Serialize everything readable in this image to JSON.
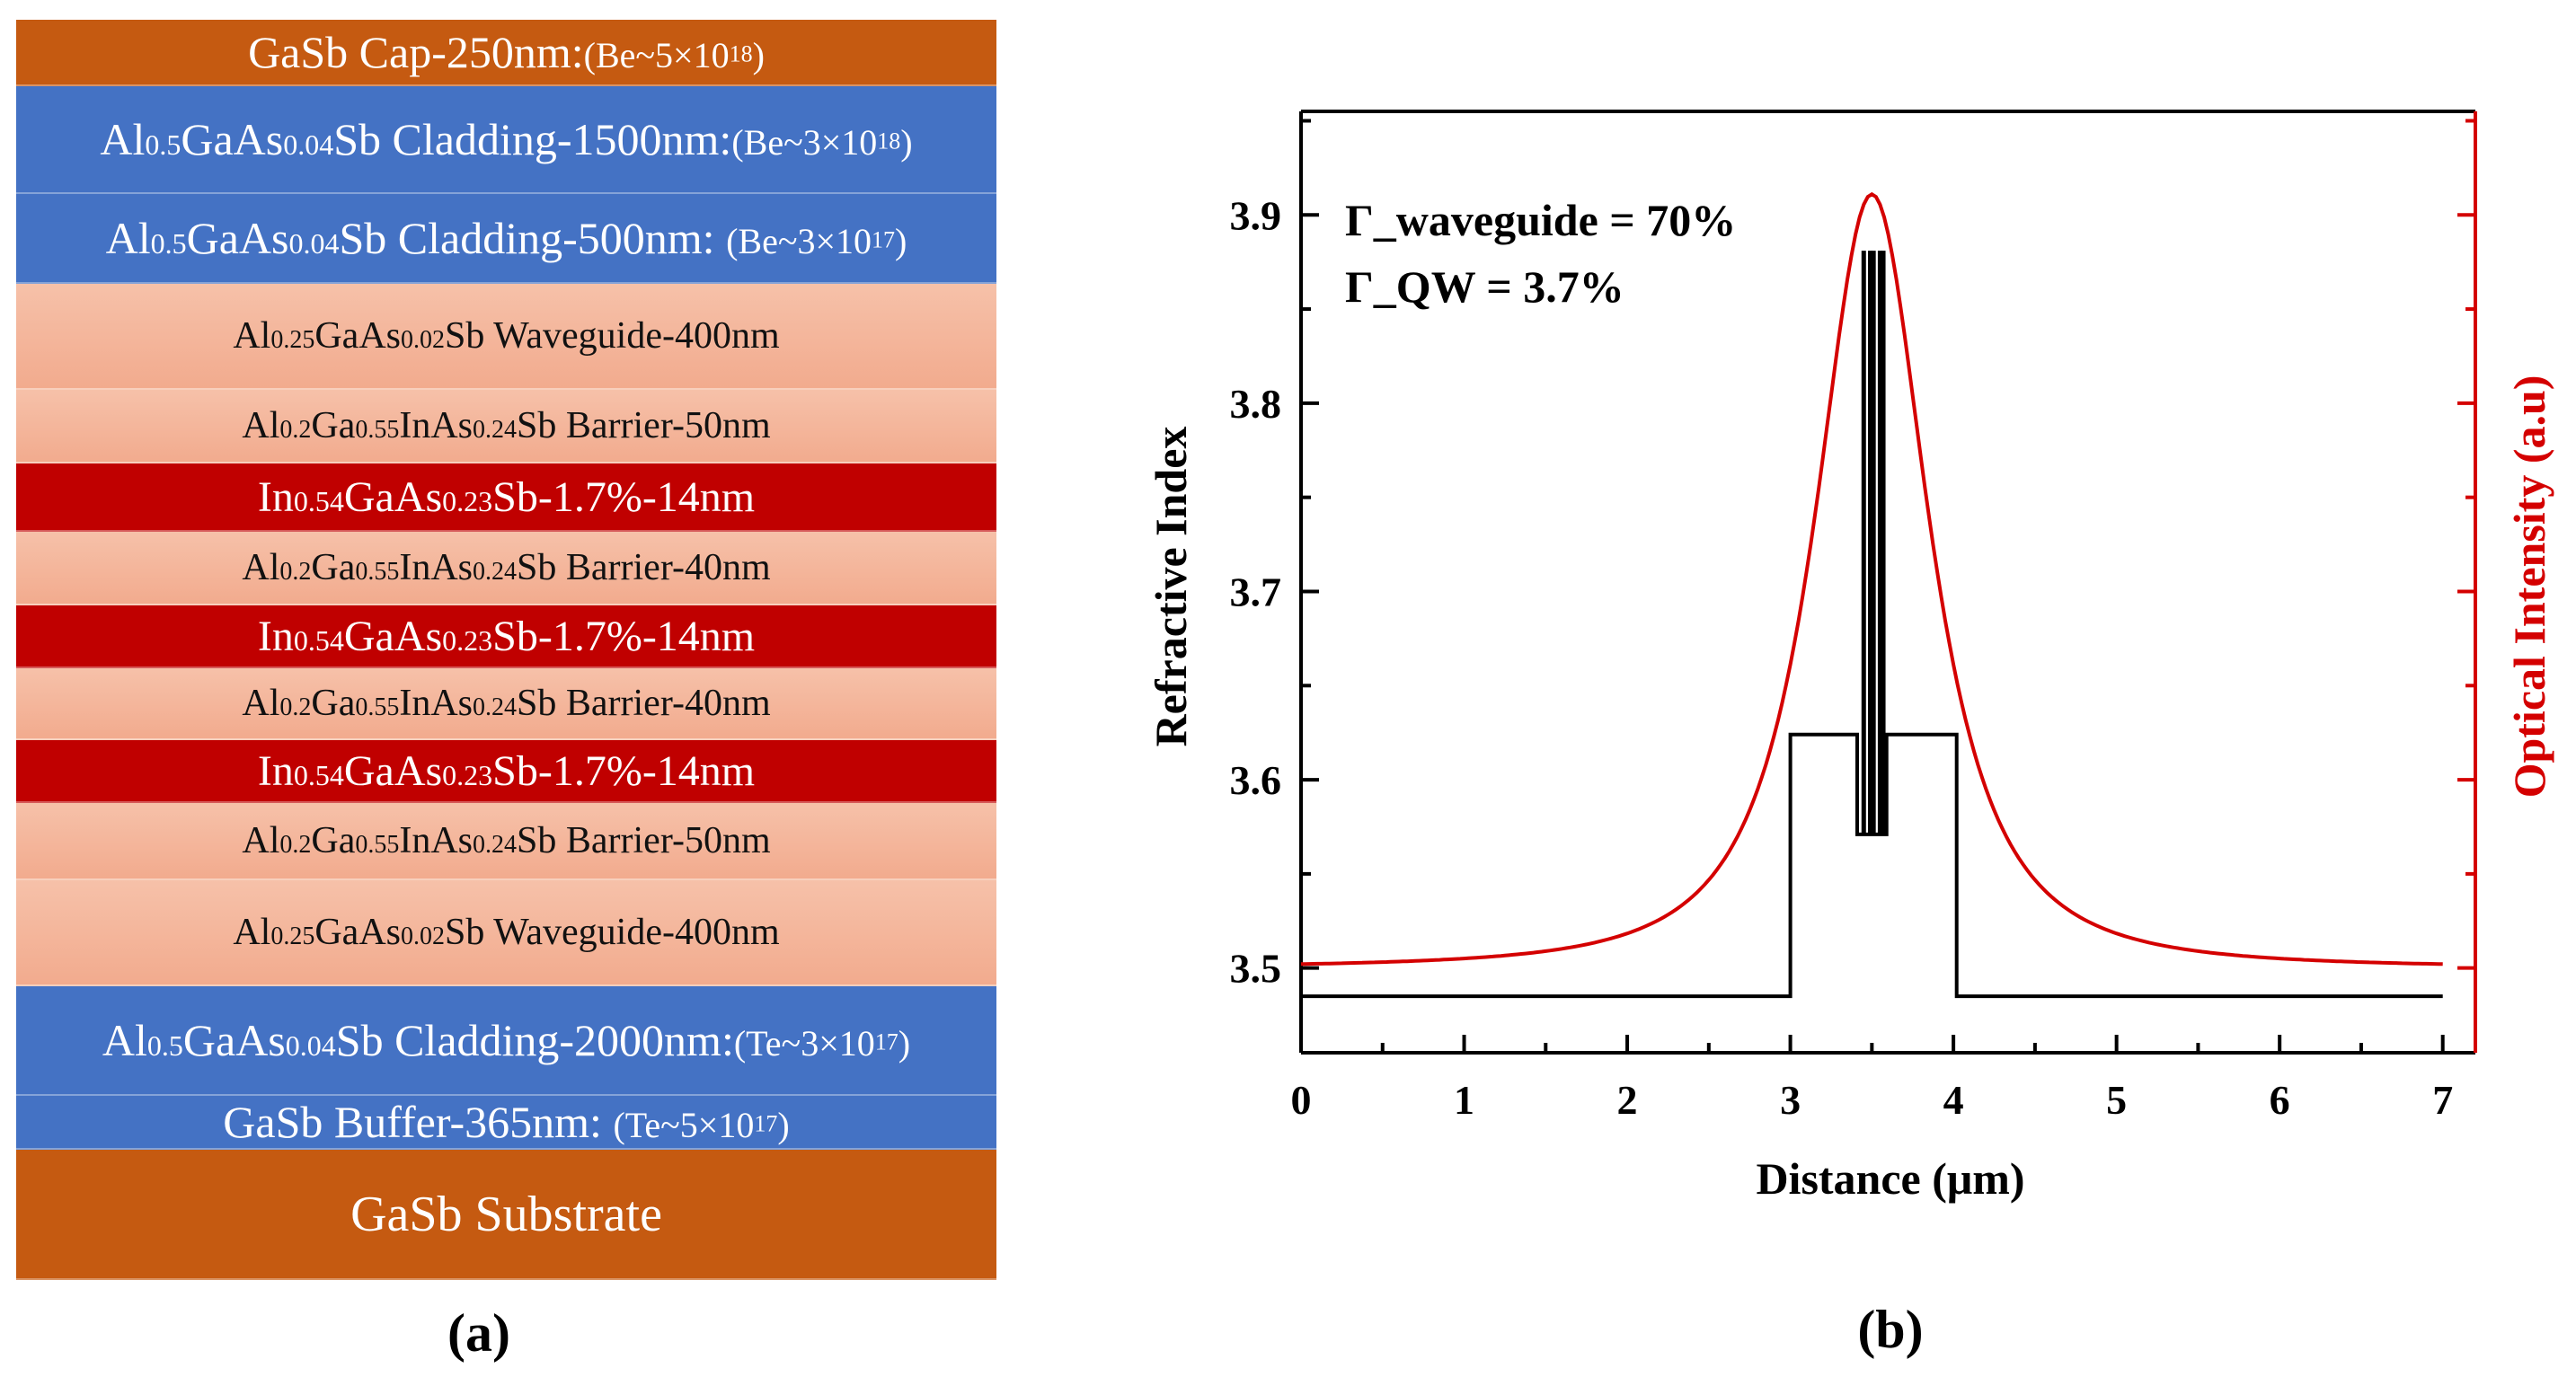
{
  "panel_a": {
    "caption": "(a)",
    "layers": [
      {
        "name": "gasb-cap",
        "parts": [
          {
            "t": "GaSb Cap-250nm:",
            "c": "main"
          },
          {
            "t": "(Be~5×10",
            "c": "note"
          },
          {
            "t": "18",
            "c": "sup"
          },
          {
            "t": ")",
            "c": "note"
          }
        ]
      },
      {
        "name": "cladding-1500",
        "parts": [
          {
            "t": "Al",
            "c": "main"
          },
          {
            "t": "0.5",
            "c": "sub"
          },
          {
            "t": "GaAs",
            "c": "main"
          },
          {
            "t": "0.04",
            "c": "sub"
          },
          {
            "t": "Sb Cladding-1500nm:",
            "c": "main"
          },
          {
            "t": "(Be~3×10",
            "c": "note"
          },
          {
            "t": "18",
            "c": "sup"
          },
          {
            "t": ")",
            "c": "note"
          }
        ]
      },
      {
        "name": "cladding-500",
        "parts": [
          {
            "t": "Al",
            "c": "main"
          },
          {
            "t": "0.5",
            "c": "sub"
          },
          {
            "t": "GaAs",
            "c": "main"
          },
          {
            "t": "0.04",
            "c": "sub"
          },
          {
            "t": "Sb Cladding-500nm: ",
            "c": "main"
          },
          {
            "t": "(Be~3×10",
            "c": "note"
          },
          {
            "t": "17",
            "c": "sup"
          },
          {
            "t": ")",
            "c": "note"
          }
        ]
      },
      {
        "name": "waveguide-top",
        "parts": [
          {
            "t": "Al",
            "c": "main"
          },
          {
            "t": "0.25",
            "c": "sub"
          },
          {
            "t": "GaAs",
            "c": "main"
          },
          {
            "t": "0.02",
            "c": "sub"
          },
          {
            "t": "Sb Waveguide-400nm",
            "c": "main"
          }
        ]
      },
      {
        "name": "barrier-50-top",
        "parts": [
          {
            "t": "Al",
            "c": "main"
          },
          {
            "t": "0.2",
            "c": "sub"
          },
          {
            "t": "Ga",
            "c": "main"
          },
          {
            "t": "0.55",
            "c": "sub"
          },
          {
            "t": "InAs",
            "c": "main"
          },
          {
            "t": "0.24",
            "c": "sub"
          },
          {
            "t": "Sb Barrier-50nm",
            "c": "main"
          }
        ]
      },
      {
        "name": "qw-1",
        "parts": [
          {
            "t": "In",
            "c": "main"
          },
          {
            "t": "0.54",
            "c": "sub"
          },
          {
            "t": "GaAs",
            "c": "main"
          },
          {
            "t": "0.23",
            "c": "sub"
          },
          {
            "t": "Sb-1.7%-14nm",
            "c": "main"
          }
        ]
      },
      {
        "name": "barrier-40-a",
        "parts": [
          {
            "t": "Al",
            "c": "main"
          },
          {
            "t": "0.2",
            "c": "sub"
          },
          {
            "t": "Ga",
            "c": "main"
          },
          {
            "t": "0.55",
            "c": "sub"
          },
          {
            "t": "InAs",
            "c": "main"
          },
          {
            "t": "0.24",
            "c": "sub"
          },
          {
            "t": "Sb Barrier-40nm",
            "c": "main"
          }
        ]
      },
      {
        "name": "qw-2",
        "parts": [
          {
            "t": "In",
            "c": "main"
          },
          {
            "t": "0.54",
            "c": "sub"
          },
          {
            "t": "GaAs",
            "c": "main"
          },
          {
            "t": "0.23",
            "c": "sub"
          },
          {
            "t": "Sb-1.7%-14nm",
            "c": "main"
          }
        ]
      },
      {
        "name": "barrier-40-b",
        "parts": [
          {
            "t": "Al",
            "c": "main"
          },
          {
            "t": "0.2",
            "c": "sub"
          },
          {
            "t": "Ga",
            "c": "main"
          },
          {
            "t": "0.55",
            "c": "sub"
          },
          {
            "t": "InAs",
            "c": "main"
          },
          {
            "t": "0.24",
            "c": "sub"
          },
          {
            "t": "Sb Barrier-40nm",
            "c": "main"
          }
        ]
      },
      {
        "name": "qw-3",
        "parts": [
          {
            "t": "In",
            "c": "main"
          },
          {
            "t": "0.54",
            "c": "sub"
          },
          {
            "t": "GaAs",
            "c": "main"
          },
          {
            "t": "0.23",
            "c": "sub"
          },
          {
            "t": "Sb-1.7%-14nm",
            "c": "main"
          }
        ]
      },
      {
        "name": "barrier-50-bottom",
        "parts": [
          {
            "t": "Al",
            "c": "main"
          },
          {
            "t": "0.2",
            "c": "sub"
          },
          {
            "t": "Ga",
            "c": "main"
          },
          {
            "t": "0.55",
            "c": "sub"
          },
          {
            "t": "InAs",
            "c": "main"
          },
          {
            "t": "0.24",
            "c": "sub"
          },
          {
            "t": "Sb Barrier-50nm",
            "c": "main"
          }
        ]
      },
      {
        "name": "waveguide-bottom",
        "parts": [
          {
            "t": "Al",
            "c": "main"
          },
          {
            "t": "0.25",
            "c": "sub"
          },
          {
            "t": "GaAs",
            "c": "main"
          },
          {
            "t": "0.02",
            "c": "sub"
          },
          {
            "t": "Sb Waveguide-400nm",
            "c": "main"
          }
        ]
      },
      {
        "name": "cladding-2000",
        "parts": [
          {
            "t": "Al",
            "c": "main"
          },
          {
            "t": "0.5",
            "c": "sub"
          },
          {
            "t": "GaAs",
            "c": "main"
          },
          {
            "t": "0.04",
            "c": "sub"
          },
          {
            "t": "Sb Cladding-2000nm:",
            "c": "main"
          },
          {
            "t": "(Te~3×10",
            "c": "note"
          },
          {
            "t": "17",
            "c": "sup"
          },
          {
            "t": ")",
            "c": "note"
          }
        ]
      },
      {
        "name": "gasb-buffer",
        "parts": [
          {
            "t": "GaSb Buffer-365nm: ",
            "c": "main"
          },
          {
            "t": "(Te~5×10",
            "c": "note"
          },
          {
            "t": "17",
            "c": "sup"
          },
          {
            "t": ")",
            "c": "note"
          }
        ]
      },
      {
        "name": "gasb-substrate",
        "parts": [
          {
            "t": "GaSb Substrate",
            "c": "main"
          }
        ]
      }
    ]
  },
  "panel_b": {
    "caption": "(b)",
    "annotations": [
      "Γ_waveguide = 70%",
      "Γ_QW = 3.7%"
    ]
  },
  "colors": {
    "orange": "#c55a11",
    "blue": "#4472c4",
    "salmon": "#f4b49a",
    "red_layer": "#c00000",
    "intensity_curve": "#d40000",
    "index_curve": "#000000"
  },
  "chart_data": {
    "type": "line",
    "title": "",
    "xlabel": "Distance (μm)",
    "ylabel": "Refractive Index",
    "y2label": "Optical Intensity (a.u)",
    "xlim": [
      0,
      7.2
    ],
    "ylim": [
      3.455,
      3.955
    ],
    "xticks": [
      0,
      1,
      2,
      3,
      4,
      5,
      6,
      7
    ],
    "yticks": [
      3.5,
      3.6,
      3.7,
      3.8,
      3.9
    ],
    "grid": false,
    "series": [
      {
        "name": "Refractive Index",
        "axis": "left",
        "x": [
          0.0,
          3.0,
          3.0,
          3.41,
          3.41,
          3.59,
          3.59,
          4.02,
          4.02,
          7.0
        ],
        "y": [
          3.485,
          3.485,
          3.624,
          3.624,
          3.571,
          3.571,
          3.624,
          3.624,
          3.485,
          3.485
        ]
      },
      {
        "name": "Quantum wells",
        "axis": "left",
        "type": "spikes",
        "x": [
          3.45,
          3.49,
          3.51,
          3.55,
          3.57
        ],
        "base": 3.571,
        "top": 3.881
      },
      {
        "name": "Optical Intensity",
        "axis": "right",
        "center": 3.5,
        "x": [
          0.0,
          0.5,
          1.0,
          1.5,
          2.0,
          2.3,
          2.6,
          2.9,
          3.1,
          3.3,
          3.4,
          3.5,
          3.6,
          3.7,
          3.9,
          4.1,
          4.4,
          4.7,
          5.0,
          5.5,
          6.0,
          6.5,
          7.0
        ],
        "y": [
          3.5,
          3.5005,
          3.502,
          3.506,
          3.515,
          3.53,
          3.56,
          3.62,
          3.7,
          3.82,
          3.875,
          3.911,
          3.875,
          3.82,
          3.7,
          3.62,
          3.56,
          3.53,
          3.515,
          3.506,
          3.502,
          3.5005,
          3.5
        ]
      }
    ]
  }
}
